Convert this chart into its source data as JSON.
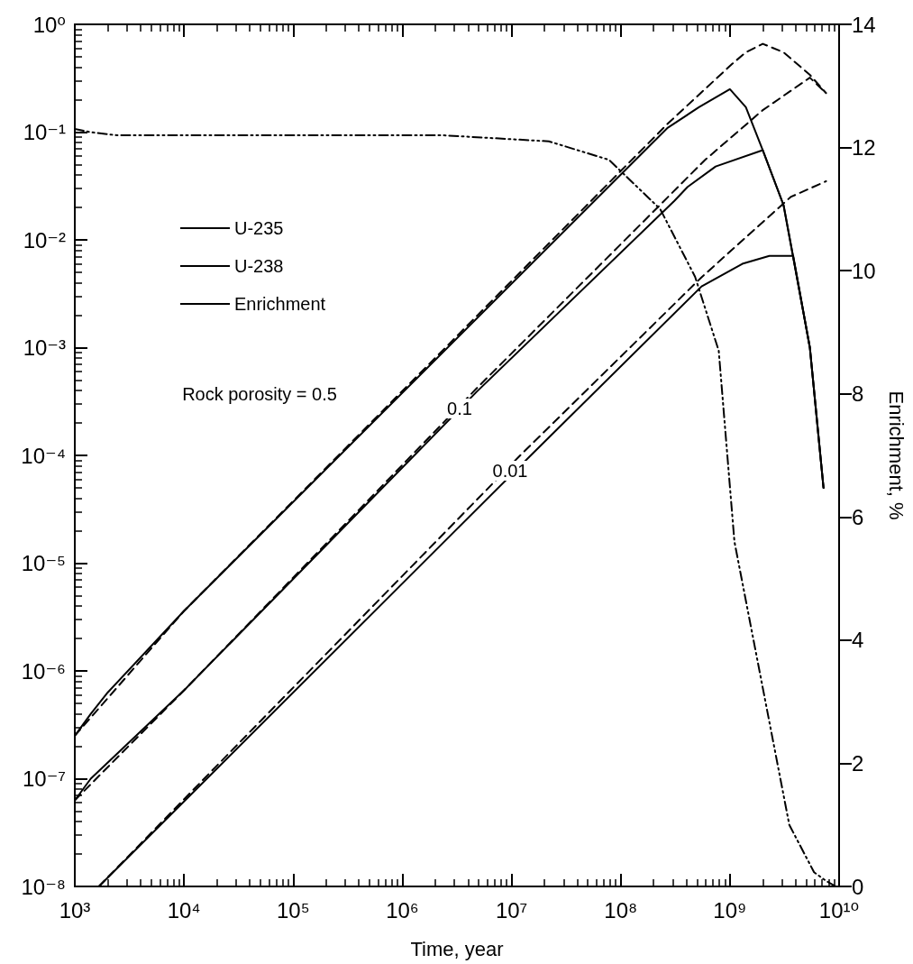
{
  "chart_data": {
    "type": "line",
    "xlabel": "Time, year",
    "y2label": "Enrichment, %",
    "log": "xy",
    "grid": false,
    "legend": "top left",
    "marker": "none",
    "xlim": [
      1000,
      10000000000
    ],
    "xticks": [
      {
        "value": 1000,
        "label": "10³"
      },
      {
        "value": 10000,
        "label": "10⁴"
      },
      {
        "value": 100000,
        "label": "10⁵"
      },
      {
        "value": 1000000,
        "label": "10⁶"
      },
      {
        "value": 10000000,
        "label": "10⁷"
      },
      {
        "value": 100000000,
        "label": "10⁸"
      },
      {
        "value": 1000000000,
        "label": "10⁹"
      },
      {
        "value": 10000000000,
        "label": "10¹⁰"
      }
    ],
    "ylim": [
      1e-08,
      1
    ],
    "yticks": [
      {
        "value": 1e-08,
        "label": "10⁻⁸"
      },
      {
        "value": 1e-07,
        "label": "10⁻⁷"
      },
      {
        "value": 1e-06,
        "label": "10⁻⁶"
      },
      {
        "value": 1e-05,
        "label": "10⁻⁵"
      },
      {
        "value": 0.0001,
        "label": "10⁻⁴"
      },
      {
        "value": 0.001,
        "label": "10⁻³"
      },
      {
        "value": 0.01,
        "label": "10⁻²"
      },
      {
        "value": 0.1,
        "label": "10⁻¹"
      },
      {
        "value": 1,
        "label": "10⁰"
      }
    ],
    "y2lim": [
      0,
      14
    ],
    "y2ticks": [
      0,
      2,
      4,
      6,
      8,
      10,
      12,
      14
    ],
    "annotations": [
      "Rock porosity = 0.5",
      "0.1",
      "0.01"
    ],
    "series": [
      {
        "name": "U-235",
        "color": "#000000",
        "line_style": "solid",
        "x": [
          1000,
          1400,
          2000,
          10000,
          270000000,
          520000000,
          1000000000,
          1400000000,
          2000000000,
          3100000000,
          3800000000,
          5400000000,
          7200000000
        ],
        "values": [
          2.5e-07,
          4e-07,
          6.3e-07,
          3.6e-06,
          0.11,
          0.17,
          0.25,
          0.17,
          0.068,
          0.021,
          0.0069,
          0.001,
          5e-05
        ]
      },
      {
        "color": "#000000",
        "line_style": "solid",
        "x": [
          1000,
          1400,
          10000,
          4800000,
          310000000,
          410000000,
          740000000,
          2000000000,
          3100000000,
          3800000000,
          5400000000,
          7200000000
        ],
        "values": [
          6.3e-08,
          1e-07,
          6.6e-07,
          0.00039,
          0.023,
          0.031,
          0.048,
          0.068,
          0.021,
          0.0069,
          0.001,
          5e-05
        ]
      },
      {
        "color": "#000000",
        "line_style": "solid",
        "x": [
          1660,
          15000000,
          550000000,
          1300000000,
          2300000000,
          3800000000,
          5400000000,
          7200000000
        ],
        "values": [
          1e-08,
          0.0001,
          0.0037,
          0.006,
          0.0071,
          0.0071,
          0.001,
          5e-05
        ]
      },
      {
        "name": "U-238",
        "color": "#000000",
        "line_style": "dashed",
        "x": [
          1000,
          10000,
          270000000,
          1050000000,
          1400000000,
          2000000000,
          3100000000,
          5400000000,
          7600000000
        ],
        "values": [
          2.5e-07,
          3.6e-06,
          0.12,
          0.43,
          0.55,
          0.66,
          0.55,
          0.34,
          0.23
        ]
      },
      {
        "color": "#000000",
        "line_style": "dashed",
        "x": [
          1000,
          10000,
          4800000,
          590000000,
          2000000000,
          5400000000,
          7600000000
        ],
        "values": [
          6.3e-08,
          6.6e-07,
          0.00042,
          0.055,
          0.16,
          0.32,
          0.23
        ]
      },
      {
        "color": "#000000",
        "line_style": "dashed",
        "x": [
          1660,
          12000000,
          550000000,
          3600000000,
          7600000000
        ],
        "values": [
          1e-08,
          0.0001,
          0.0045,
          0.025,
          0.035
        ]
      },
      {
        "name": "Enrichment",
        "color": "#000000",
        "line_style": "dashdot",
        "axis": "y2",
        "x": [
          1000,
          1380,
          2400,
          2300000,
          22000000,
          78000000,
          230000000,
          480000000,
          790000000,
          1100000000,
          3500000000,
          5900000000,
          7600000000,
          9300000000
        ],
        "values": [
          12.3,
          12.25,
          12.2,
          12.2,
          12.1,
          11.8,
          11.0,
          9.9,
          8.7,
          5.6,
          1.0,
          0.23,
          0.09,
          0
        ]
      }
    ]
  }
}
